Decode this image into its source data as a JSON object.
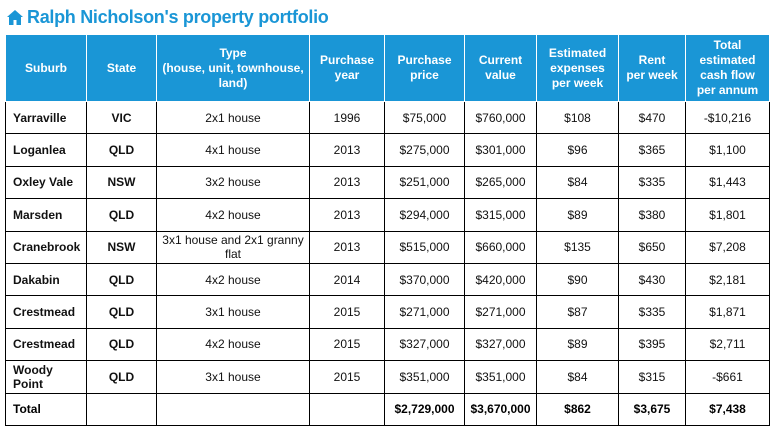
{
  "title": "Ralph Nicholson's property portfolio",
  "icon": "house-icon",
  "accent_color": "#1a96d6",
  "columns": [
    "Suburb",
    "State",
    "Type\n(house, unit, townhouse,\nland)",
    "Purchase\nyear",
    "Purchase\nprice",
    "Current\nvalue",
    "Estimated\nexpenses\nper week",
    "Rent\nper week",
    "Total\nestimated\ncash flow\nper annum"
  ],
  "rows": [
    [
      "Yarraville",
      "VIC",
      "2x1 house",
      "1996",
      "$75,000",
      "$760,000",
      "$108",
      "$470",
      "-$10,216"
    ],
    [
      "Loganlea",
      "QLD",
      "4x1 house",
      "2013",
      "$275,000",
      "$301,000",
      "$96",
      "$365",
      "$1,100"
    ],
    [
      "Oxley Vale",
      "NSW",
      "3x2 house",
      "2013",
      "$251,000",
      "$265,000",
      "$84",
      "$335",
      "$1,443"
    ],
    [
      "Marsden",
      "QLD",
      "4x2 house",
      "2013",
      "$294,000",
      "$315,000",
      "$89",
      "$380",
      "$1,801"
    ],
    [
      "Cranebrook",
      "NSW",
      "3x1 house and 2x1 granny flat",
      "2013",
      "$515,000",
      "$660,000",
      "$135",
      "$650",
      "$7,208"
    ],
    [
      "Dakabin",
      "QLD",
      "4x2 house",
      "2014",
      "$370,000",
      "$420,000",
      "$90",
      "$430",
      "$2,181"
    ],
    [
      "Crestmead",
      "QLD",
      "3x1 house",
      "2015",
      "$271,000",
      "$271,000",
      "$87",
      "$335",
      "$1,871"
    ],
    [
      "Crestmead",
      "QLD",
      "4x2 house",
      "2015",
      "$327,000",
      "$327,000",
      "$89",
      "$395",
      "$2,711"
    ],
    [
      "Woody Point",
      "QLD",
      "3x1 house",
      "2015",
      "$351,000",
      "$351,000",
      "$84",
      "$315",
      "-$661"
    ]
  ],
  "total": [
    "Total",
    "",
    "",
    "",
    "$2,729,000",
    "$3,670,000",
    "$862",
    "$3,675",
    "$7,438"
  ]
}
